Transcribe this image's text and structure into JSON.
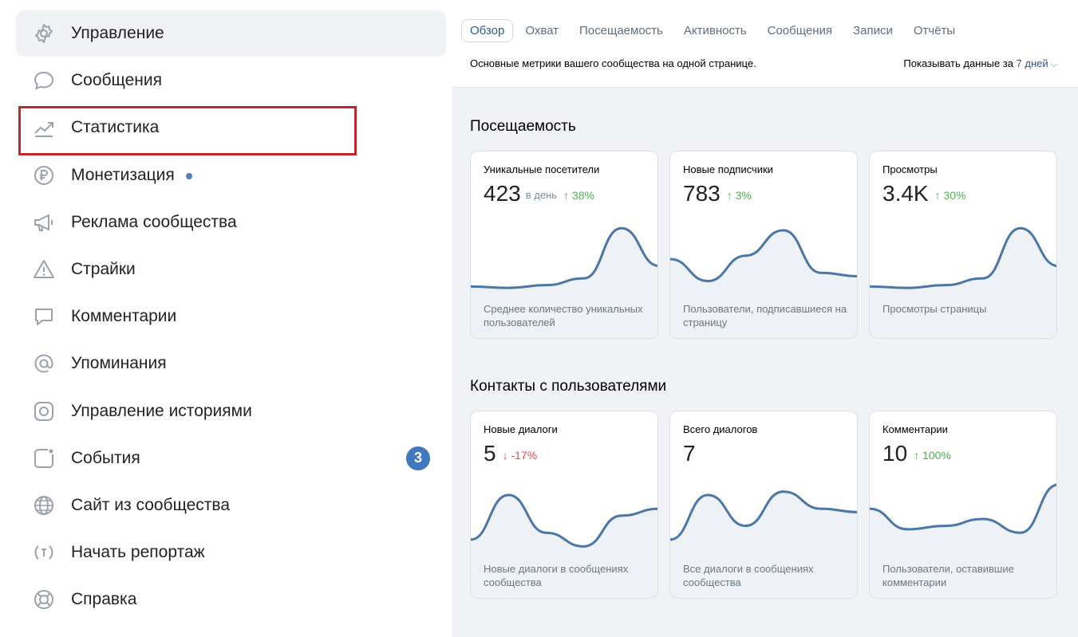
{
  "sidebar": {
    "items": [
      {
        "label": "Управление",
        "icon": "gear-icon",
        "active": true
      },
      {
        "label": "Сообщения",
        "icon": "chat-bubble-icon"
      },
      {
        "label": "Статистика",
        "icon": "trend-chart-icon",
        "highlighted": true
      },
      {
        "label": "Монетизация",
        "icon": "ruble-coin-icon",
        "dot": true
      },
      {
        "label": "Реклама сообщества",
        "icon": "megaphone-icon"
      },
      {
        "label": "Страйки",
        "icon": "warning-triangle-icon"
      },
      {
        "label": "Комментарии",
        "icon": "comment-icon"
      },
      {
        "label": "Упоминания",
        "icon": "at-sign-icon"
      },
      {
        "label": "Управление историями",
        "icon": "story-icon"
      },
      {
        "label": "События",
        "icon": "event-icon",
        "badge": "3"
      },
      {
        "label": "Сайт из сообщества",
        "icon": "globe-icon"
      },
      {
        "label": "Начать репортаж",
        "icon": "live-broadcast-icon"
      },
      {
        "label": "Справка",
        "icon": "lifebuoy-icon"
      }
    ]
  },
  "tabs": [
    "Обзор",
    "Охват",
    "Посещаемость",
    "Активность",
    "Сообщения",
    "Записи",
    "Отчёты"
  ],
  "active_tab": "Обзор",
  "subtitle": "Основные метрики вашего сообщества на одной странице.",
  "period": {
    "label": "Показывать данные за",
    "value": "7 дней"
  },
  "sections": [
    {
      "title": "Посещаемость",
      "cards": [
        {
          "title": "Уникальные посетители",
          "value": "423",
          "unit": "в день",
          "delta": "38%",
          "direction": "up",
          "description": "Среднее количество уникальных пользователей",
          "trend": [
            0.1,
            0.08,
            0.12,
            0.22,
            0.95,
            0.4
          ]
        },
        {
          "title": "Новые подписчики",
          "value": "783",
          "unit": "",
          "delta": "3%",
          "direction": "up",
          "description": "Пользователи, подписавшиеся на страницу",
          "trend": [
            0.5,
            0.18,
            0.55,
            0.92,
            0.3,
            0.25
          ]
        },
        {
          "title": "Просмотры",
          "value": "3.4K",
          "unit": "",
          "delta": "30%",
          "direction": "up",
          "description": "Просмотры страницы",
          "trend": [
            0.1,
            0.08,
            0.12,
            0.22,
            0.95,
            0.4
          ]
        }
      ]
    },
    {
      "title": "Контакты с пользователями",
      "cards": [
        {
          "title": "Новые диалоги",
          "value": "5",
          "unit": "",
          "delta": "-17%",
          "direction": "down",
          "description": "Новые диалоги в сообщениях сообщества",
          "trend": [
            0.2,
            0.85,
            0.3,
            0.1,
            0.55,
            0.65
          ]
        },
        {
          "title": "Всего диалогов",
          "value": "7",
          "unit": "",
          "delta": "",
          "direction": "",
          "description": "Все диалоги в сообщениях сообщества",
          "trend": [
            0.2,
            0.85,
            0.4,
            0.9,
            0.65,
            0.6
          ]
        },
        {
          "title": "Комментарии",
          "value": "10",
          "unit": "",
          "delta": "100%",
          "direction": "up",
          "description": "Пользователи, оставившие комментарии",
          "trend": [
            0.65,
            0.35,
            0.4,
            0.5,
            0.3,
            1.0
          ]
        }
      ]
    }
  ]
}
